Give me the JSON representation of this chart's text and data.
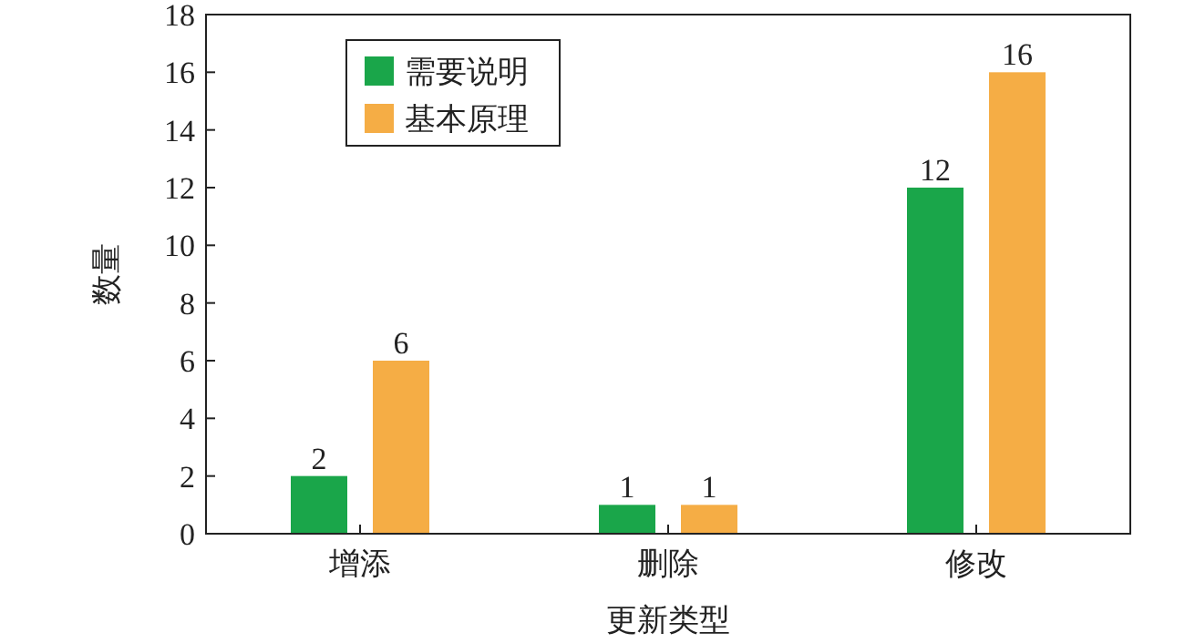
{
  "chart_data": {
    "type": "bar",
    "xlabel": "更新类型",
    "ylabel": "数量",
    "categories": [
      "增添",
      "删除",
      "修改"
    ],
    "series": [
      {
        "name": "需要说明",
        "color": "#1aa64a",
        "values": [
          2,
          1,
          12
        ]
      },
      {
        "name": "基本原理",
        "color": "#f5ad45",
        "values": [
          6,
          1,
          16
        ]
      }
    ],
    "ylim": [
      0,
      18
    ],
    "yticks": [
      0,
      2,
      4,
      6,
      8,
      10,
      12,
      14,
      16,
      18
    ],
    "data_labels": true,
    "legend": "top left",
    "grid": false
  }
}
